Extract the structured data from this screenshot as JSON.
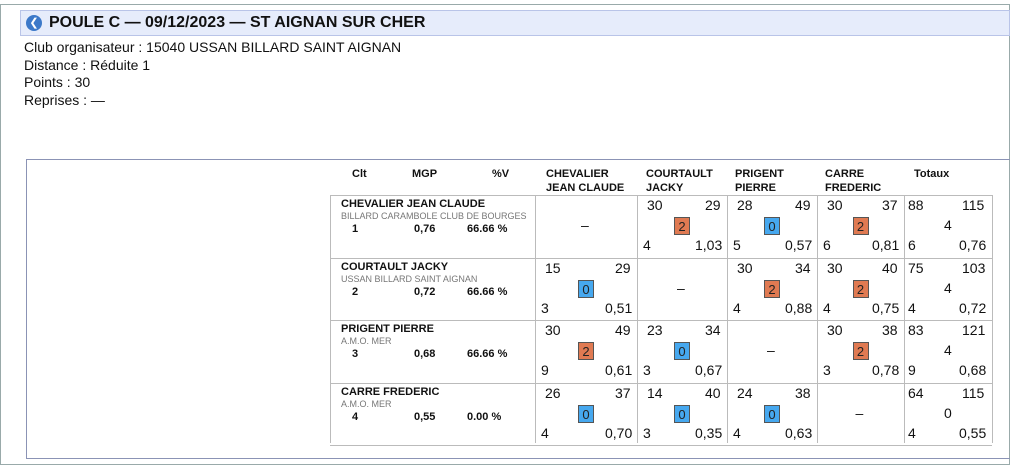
{
  "header": {
    "title": "POULE C — 09/12/2023 — ST AIGNAN SUR CHER"
  },
  "info": {
    "club": "Club organisateur : 15040 USSAN BILLARD SAINT AIGNAN",
    "distance": "Distance : Réduite 1",
    "points": "Points : 30",
    "reprises": "Reprises : —"
  },
  "columns": {
    "clt": "Clt",
    "mgp": "MGP",
    "pv": "%V",
    "p1a": "CHEVALIER",
    "p1b": "JEAN CLAUDE",
    "p2a": "COURTAULT",
    "p2b": "JACKY",
    "p3a": "PRIGENT",
    "p3b": "PIERRE",
    "p4a": "CARRE",
    "p4b": "FREDERIC",
    "tot": "Totaux"
  },
  "dash": "–",
  "rows": [
    {
      "name": "CHEVALIER JEAN CLAUDE",
      "club": "BILLARD CARAMBOLE CLUB DE BOURGES",
      "clt": "1",
      "mgp": "0,76",
      "pv": "66.66 %",
      "cells": [
        null,
        {
          "pts": "30",
          "dist": "29",
          "badge": "2",
          "rep": "4",
          "moy": "1,03",
          "win": true
        },
        {
          "pts": "28",
          "dist": "49",
          "badge": "0",
          "rep": "5",
          "moy": "0,57",
          "win": false
        },
        {
          "pts": "30",
          "dist": "37",
          "badge": "2",
          "rep": "6",
          "moy": "0,81",
          "win": true
        }
      ],
      "tot": {
        "pts": "88",
        "dist": "115",
        "mp": "4",
        "rep": "6",
        "moy": "0,76"
      }
    },
    {
      "name": "COURTAULT JACKY",
      "club": "USSAN BILLARD SAINT AIGNAN",
      "clt": "2",
      "mgp": "0,72",
      "pv": "66.66 %",
      "cells": [
        {
          "pts": "15",
          "dist": "29",
          "badge": "0",
          "rep": "3",
          "moy": "0,51",
          "win": false
        },
        null,
        {
          "pts": "30",
          "dist": "34",
          "badge": "2",
          "rep": "4",
          "moy": "0,88",
          "win": true
        },
        {
          "pts": "30",
          "dist": "40",
          "badge": "2",
          "rep": "4",
          "moy": "0,75",
          "win": true
        }
      ],
      "tot": {
        "pts": "75",
        "dist": "103",
        "mp": "4",
        "rep": "4",
        "moy": "0,72"
      }
    },
    {
      "name": "PRIGENT PIERRE",
      "club": "A.M.O. MER",
      "clt": "3",
      "mgp": "0,68",
      "pv": "66.66 %",
      "cells": [
        {
          "pts": "30",
          "dist": "49",
          "badge": "2",
          "rep": "9",
          "moy": "0,61",
          "win": true
        },
        {
          "pts": "23",
          "dist": "34",
          "badge": "0",
          "rep": "3",
          "moy": "0,67",
          "win": false
        },
        null,
        {
          "pts": "30",
          "dist": "38",
          "badge": "2",
          "rep": "3",
          "moy": "0,78",
          "win": true
        }
      ],
      "tot": {
        "pts": "83",
        "dist": "121",
        "mp": "4",
        "rep": "9",
        "moy": "0,68"
      }
    },
    {
      "name": "CARRE FREDERIC",
      "club": "A.M.O. MER",
      "clt": "4",
      "mgp": "0,55",
      "pv": "0.00 %",
      "cells": [
        {
          "pts": "26",
          "dist": "37",
          "badge": "0",
          "rep": "4",
          "moy": "0,70",
          "win": false
        },
        {
          "pts": "14",
          "dist": "40",
          "badge": "0",
          "rep": "3",
          "moy": "0,35",
          "win": false
        },
        {
          "pts": "24",
          "dist": "38",
          "badge": "0",
          "rep": "4",
          "moy": "0,63",
          "win": false
        },
        null
      ],
      "tot": {
        "pts": "64",
        "dist": "115",
        "mp": "0",
        "rep": "4",
        "moy": "0,55"
      }
    }
  ]
}
